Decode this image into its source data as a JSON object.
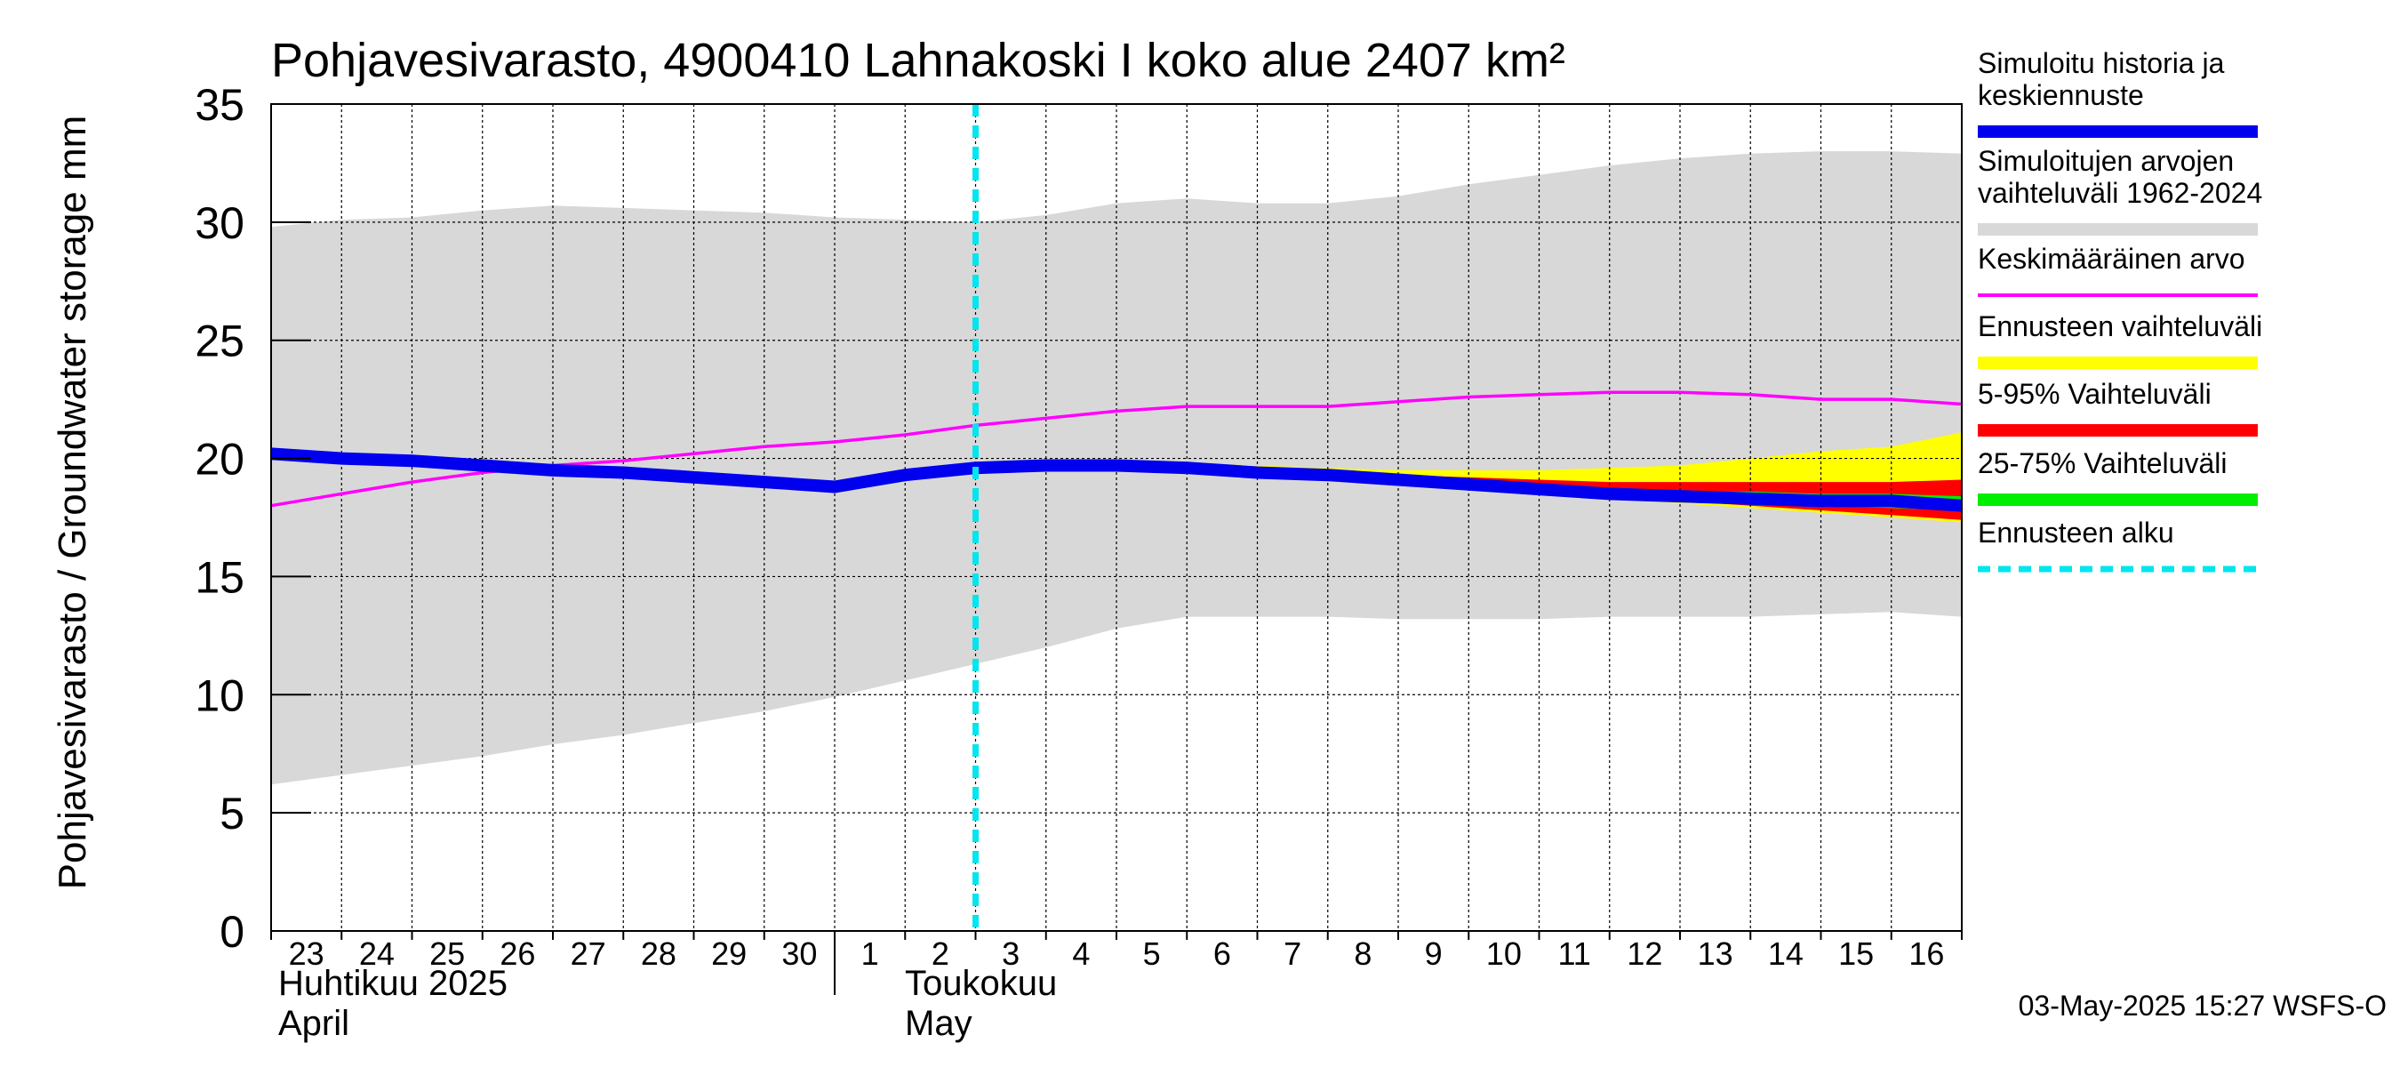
{
  "chart_data": {
    "type": "area",
    "title": "Pohjavesivarasto, 4900410 Lahnakoski I koko alue 2407 km²",
    "ylabel": "Pohjavesivarasto / Groundwater storage   mm",
    "ylim": [
      0,
      35
    ],
    "yticks": [
      0,
      5,
      10,
      15,
      20,
      25,
      30,
      35
    ],
    "grid": true,
    "x_day_index_range": [
      0,
      24
    ],
    "x_tick_labels": [
      "23",
      "24",
      "25",
      "26",
      "27",
      "28",
      "29",
      "30",
      "1",
      "2",
      "3",
      "4",
      "5",
      "6",
      "7",
      "8",
      "9",
      "10",
      "11",
      "12",
      "13",
      "14",
      "15",
      "16"
    ],
    "month_labels": [
      {
        "line1": "Huhtikuu  2025",
        "line2": "April"
      },
      {
        "line1": "Toukokuu",
        "line2": "May"
      }
    ],
    "forecast_start_day_index": 10,
    "series": [
      {
        "name": "Simuloitujen arvojen vaihteluväli 1962-2024",
        "kind": "band",
        "color": "#d8d8d8",
        "x": [
          0,
          1,
          2,
          3,
          4,
          5,
          6,
          7,
          8,
          9,
          10,
          11,
          12,
          13,
          14,
          15,
          16,
          17,
          18,
          19,
          20,
          21,
          22,
          23,
          24
        ],
        "upper": [
          29.8,
          30.1,
          30.2,
          30.5,
          30.7,
          30.6,
          30.5,
          30.4,
          30.2,
          30.1,
          30.0,
          30.3,
          30.8,
          31.0,
          30.8,
          30.8,
          31.1,
          31.6,
          32.0,
          32.4,
          32.7,
          32.9,
          33.0,
          33.0,
          32.9
        ],
        "lower": [
          6.2,
          6.6,
          7.0,
          7.4,
          7.9,
          8.3,
          8.8,
          9.3,
          9.9,
          10.6,
          11.3,
          12.0,
          12.8,
          13.3,
          13.3,
          13.3,
          13.2,
          13.2,
          13.2,
          13.3,
          13.3,
          13.3,
          13.4,
          13.5,
          13.3
        ]
      },
      {
        "name": "Ennusteen vaihteluväli",
        "kind": "band",
        "color": "#ffff00",
        "x": [
          10,
          11,
          12,
          13,
          14,
          15,
          16,
          17,
          18,
          19,
          20,
          21,
          22,
          23,
          24
        ],
        "upper": [
          19.7,
          19.8,
          19.8,
          19.8,
          19.7,
          19.6,
          19.5,
          19.5,
          19.5,
          19.6,
          19.7,
          20.0,
          20.3,
          20.5,
          21.1
        ],
        "lower": [
          19.7,
          19.7,
          19.6,
          19.5,
          19.3,
          19.1,
          18.9,
          18.7,
          18.5,
          18.3,
          18.1,
          17.9,
          17.7,
          17.5,
          17.3
        ]
      },
      {
        "name": "5-95% Vaihteluväli",
        "kind": "band",
        "color": "#ff0000",
        "x": [
          10,
          11,
          12,
          13,
          14,
          15,
          16,
          17,
          18,
          19,
          20,
          21,
          22,
          23,
          24
        ],
        "upper": [
          19.7,
          19.8,
          19.8,
          19.7,
          19.6,
          19.5,
          19.3,
          19.2,
          19.1,
          19.0,
          19.0,
          19.0,
          19.0,
          19.0,
          19.1
        ],
        "lower": [
          19.7,
          19.7,
          19.6,
          19.5,
          19.3,
          19.1,
          18.9,
          18.7,
          18.5,
          18.3,
          18.2,
          18.0,
          17.8,
          17.6,
          17.4
        ]
      },
      {
        "name": "25-75% Vaihteluväli",
        "kind": "band",
        "color": "#00ee00",
        "x": [
          10,
          11,
          12,
          13,
          14,
          15,
          16,
          17,
          18,
          19,
          20,
          21,
          22,
          23,
          24
        ],
        "upper": [
          19.7,
          19.8,
          19.7,
          19.6,
          19.5,
          19.3,
          19.1,
          18.9,
          18.8,
          18.7,
          18.6,
          18.6,
          18.5,
          18.5,
          18.4
        ],
        "lower": [
          19.7,
          19.7,
          19.6,
          19.5,
          19.3,
          19.1,
          18.9,
          18.7,
          18.5,
          18.4,
          18.3,
          18.1,
          18.0,
          17.9,
          17.8
        ]
      },
      {
        "name": "Keskimääräinen arvo",
        "kind": "line",
        "color": "#ff00ff",
        "x": [
          0,
          1,
          2,
          3,
          4,
          5,
          6,
          7,
          8,
          9,
          10,
          11,
          12,
          13,
          14,
          15,
          16,
          17,
          18,
          19,
          20,
          21,
          22,
          23,
          24
        ],
        "y": [
          18.0,
          18.5,
          19.0,
          19.4,
          19.7,
          19.9,
          20.2,
          20.5,
          20.7,
          21.0,
          21.4,
          21.7,
          22.0,
          22.2,
          22.2,
          22.2,
          22.4,
          22.6,
          22.7,
          22.8,
          22.8,
          22.7,
          22.5,
          22.5,
          22.3
        ]
      },
      {
        "name": "Simuloitu historia ja keskiennuste",
        "kind": "line",
        "color": "#0000ee",
        "x": [
          0,
          1,
          2,
          3,
          4,
          5,
          6,
          7,
          8,
          9,
          10,
          11,
          12,
          13,
          14,
          15,
          16,
          17,
          18,
          19,
          20,
          21,
          22,
          23,
          24
        ],
        "y": [
          20.2,
          20.0,
          19.9,
          19.7,
          19.5,
          19.4,
          19.2,
          19.0,
          18.8,
          19.3,
          19.6,
          19.7,
          19.7,
          19.6,
          19.4,
          19.3,
          19.1,
          18.9,
          18.7,
          18.5,
          18.4,
          18.3,
          18.2,
          18.2,
          18.0
        ]
      }
    ],
    "legend_placement": "right",
    "legend": [
      {
        "lines": [
          "Simuloitu historia ja",
          "keskiennuste"
        ],
        "color": "#0000ee",
        "style": "solid"
      },
      {
        "lines": [
          "Simuloitujen arvojen",
          "vaihteluväli 1962-2024"
        ],
        "color": "#d8d8d8",
        "style": "solid"
      },
      {
        "lines": [
          "Keskimääräinen arvo"
        ],
        "color": "#ff00ff",
        "style": "thin"
      },
      {
        "lines": [
          "Ennusteen vaihteluväli"
        ],
        "color": "#ffff00",
        "style": "solid"
      },
      {
        "lines": [
          "5-95% Vaihteluväli"
        ],
        "color": "#ff0000",
        "style": "solid"
      },
      {
        "lines": [
          "25-75% Vaihteluväli"
        ],
        "color": "#00ee00",
        "style": "solid"
      },
      {
        "lines": [
          "Ennusteen alku"
        ],
        "color": "#00e5ee",
        "style": "dashed"
      }
    ],
    "timestamp": "03-May-2025 15:27 WSFS-O"
  }
}
